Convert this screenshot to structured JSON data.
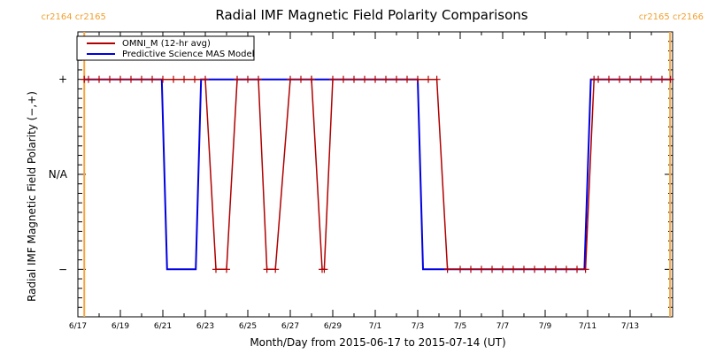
{
  "chart_data": {
    "type": "line",
    "title": "Radial IMF Magnetic Field Polarity Comparisons",
    "xlabel": "Month/Day from 2015-06-17 to 2015-07-14 (UT)",
    "ylabel": "Radial IMF Magnetic Field Polarity (−,+)",
    "x_unit": "days since 2015-06-17 00:00 UT",
    "xlim": [
      0,
      28
    ],
    "ylim": [
      -1.5,
      1.5
    ],
    "y_ticks": [
      {
        "value": 1,
        "label": "+"
      },
      {
        "value": 0,
        "label": "N/A"
      },
      {
        "value": -1,
        "label": "−"
      }
    ],
    "x_ticks": [
      {
        "value": 0,
        "label": "6/17"
      },
      {
        "value": 2,
        "label": "6/19"
      },
      {
        "value": 4,
        "label": "6/21"
      },
      {
        "value": 6,
        "label": "6/23"
      },
      {
        "value": 8,
        "label": "6/25"
      },
      {
        "value": 10,
        "label": "6/27"
      },
      {
        "value": 12,
        "label": "6/29"
      },
      {
        "value": 14,
        "label": "7/1"
      },
      {
        "value": 16,
        "label": "7/3"
      },
      {
        "value": 18,
        "label": "7/5"
      },
      {
        "value": 20,
        "label": "7/7"
      },
      {
        "value": 22,
        "label": "7/9"
      },
      {
        "value": 24,
        "label": "7/11"
      },
      {
        "value": 26,
        "label": "7/13"
      }
    ],
    "carrington_markers": [
      {
        "day": 0.3,
        "label_left": "cr2164",
        "label_right": "cr2165",
        "label_side": "top-left"
      },
      {
        "day": 27.88,
        "label_left": "cr2165",
        "label_right": "cr2166",
        "label_side": "top-right"
      }
    ],
    "legend": {
      "position": "top-left",
      "entries": [
        "OMNI_M (12-hr avg)",
        "Predictive Science MAS Model"
      ]
    },
    "series": [
      {
        "name": "OMNI_M (12-hr avg)",
        "color": "#b00000",
        "markers": "plus",
        "points": [
          [
            0.3,
            1
          ],
          [
            0.5,
            1
          ],
          [
            1,
            1
          ],
          [
            1.5,
            1
          ],
          [
            2,
            1
          ],
          [
            2.5,
            1
          ],
          [
            3,
            1
          ],
          [
            3.5,
            1
          ],
          [
            4,
            1
          ],
          [
            4.5,
            1
          ],
          [
            5,
            1
          ],
          [
            5.5,
            1
          ],
          [
            6.0,
            1
          ],
          [
            6.5,
            -1
          ],
          [
            7.0,
            -1
          ],
          [
            7.5,
            1
          ],
          [
            8.0,
            1
          ],
          [
            8.5,
            1
          ],
          [
            8.9,
            -1
          ],
          [
            9.3,
            -1
          ],
          [
            10.0,
            1
          ],
          [
            10.5,
            1
          ],
          [
            11.0,
            1
          ],
          [
            11.0,
            1
          ],
          [
            11.5,
            -1
          ],
          [
            11.6,
            -1
          ],
          [
            12.0,
            1
          ],
          [
            12.5,
            1
          ],
          [
            13,
            1
          ],
          [
            13.5,
            1
          ],
          [
            14,
            1
          ],
          [
            14.5,
            1
          ],
          [
            15,
            1
          ],
          [
            15.5,
            1
          ],
          [
            16,
            1
          ],
          [
            16.5,
            1
          ],
          [
            16.9,
            1
          ],
          [
            17.4,
            -1
          ],
          [
            18,
            -1
          ],
          [
            18.5,
            -1
          ],
          [
            19,
            -1
          ],
          [
            19.5,
            -1
          ],
          [
            20,
            -1
          ],
          [
            20.5,
            -1
          ],
          [
            21,
            -1
          ],
          [
            21.5,
            -1
          ],
          [
            22,
            -1
          ],
          [
            22.5,
            -1
          ],
          [
            23,
            -1
          ],
          [
            23.5,
            -1
          ],
          [
            23.9,
            -1
          ],
          [
            24.3,
            1
          ],
          [
            24.5,
            1
          ],
          [
            25,
            1
          ],
          [
            25.5,
            1
          ],
          [
            26,
            1
          ],
          [
            26.5,
            1
          ],
          [
            27,
            1
          ],
          [
            27.5,
            1
          ],
          [
            27.9,
            1
          ]
        ]
      },
      {
        "name": "Predictive Science MAS Model",
        "color": "#0000e0",
        "markers": "none",
        "points": [
          [
            0.3,
            1
          ],
          [
            3.95,
            1
          ],
          [
            4.2,
            -1
          ],
          [
            5.55,
            -1
          ],
          [
            5.8,
            1
          ],
          [
            16.0,
            1
          ],
          [
            16.25,
            -1
          ],
          [
            23.85,
            -1
          ],
          [
            24.15,
            1
          ],
          [
            27.9,
            1
          ]
        ]
      }
    ]
  }
}
